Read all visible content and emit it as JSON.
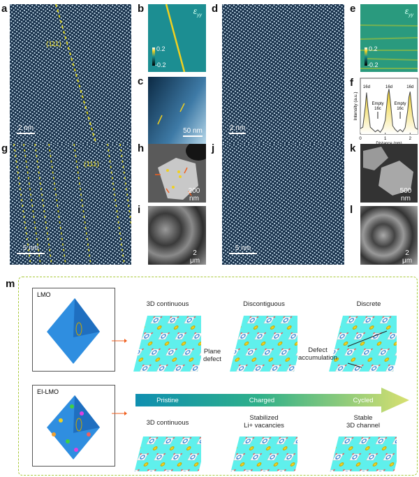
{
  "panels": {
    "a": {
      "label": "a",
      "scale_bar": "2 nm",
      "annotation": "(111)"
    },
    "b": {
      "label": "b",
      "strain_symbol": "ε",
      "strain_subscript": "yy",
      "colorbar_max": "0.2",
      "colorbar_min": "-0.2"
    },
    "c": {
      "label": "c",
      "scale_bar": "50 nm"
    },
    "d": {
      "label": "d",
      "scale_bar": "2 nm"
    },
    "e": {
      "label": "e",
      "strain_symbol": "ε",
      "strain_subscript": "yy",
      "colorbar_max": "0.2",
      "colorbar_min": "-0.2"
    },
    "f": {
      "label": "f"
    },
    "g": {
      "label": "g",
      "scale_bar": "5 nm",
      "annotation": "(111)"
    },
    "h": {
      "label": "h",
      "scale_bar": "200 nm"
    },
    "i": {
      "label": "i",
      "scale_bar": "2 μm"
    },
    "j": {
      "label": "j",
      "scale_bar": "5 nm"
    },
    "k": {
      "label": "k",
      "scale_bar": "500 nm"
    },
    "l": {
      "label": "l",
      "scale_bar": "2 μm"
    }
  },
  "chart_data": {
    "type": "line",
    "xlabel": "Distance (nm)",
    "ylabel": "Intensity (a.u.)",
    "xticks": [
      "0",
      "1",
      "2"
    ],
    "xlim": [
      0,
      2.3
    ],
    "x": [
      0,
      0.1,
      0.2,
      0.25,
      0.3,
      0.4,
      0.5,
      0.6,
      0.7,
      0.8,
      0.9,
      1.0,
      1.1,
      1.15,
      1.2,
      1.3,
      1.4,
      1.5,
      1.6,
      1.7,
      1.8,
      1.9,
      1.95,
      2.0,
      2.1,
      2.2,
      2.3
    ],
    "y": [
      0.12,
      0.15,
      0.6,
      0.9,
      0.6,
      0.15,
      0.1,
      0.05,
      0.09,
      0.04,
      0.12,
      0.3,
      0.85,
      0.98,
      0.75,
      0.18,
      0.1,
      0.05,
      0.1,
      0.05,
      0.14,
      0.5,
      0.8,
      0.92,
      0.4,
      0.14,
      0.1
    ],
    "annotations": [
      {
        "text": "16d",
        "x": 0.25
      },
      {
        "text": "Empty 16c",
        "line1": "Empty",
        "line2": "16c",
        "x": 0.7
      },
      {
        "text": "16d",
        "x": 1.15
      },
      {
        "text": "Empty 16c",
        "line1": "Empty",
        "line2": "16c",
        "x": 1.6
      },
      {
        "text": "16d",
        "x": 2.0
      }
    ]
  },
  "schematic": {
    "label": "m",
    "top_box_label": "LMO",
    "bottom_box_label": "EI-LMO",
    "top_titles": [
      "3D continuous",
      "Discontiguous",
      "Discrete"
    ],
    "bottom_titles": [
      "3D continuous",
      "Stabilized\nLi+ vacancies",
      "Stable\n3D channel"
    ],
    "plane_defect": "Plane\ndefect",
    "defect_accumulation": "Defect\naccumulation",
    "arrow_stages": [
      "Pristine",
      "Charged",
      "Cycled"
    ],
    "colors": {
      "frame": "#a9c93a",
      "lattice": "#5ff0ec",
      "mn_site": "#2f7fd0",
      "li_site": "#f0d020",
      "o_site": "#e06060",
      "arrow_start": "#0f8fb0",
      "arrow_end": "#d8e070"
    }
  }
}
